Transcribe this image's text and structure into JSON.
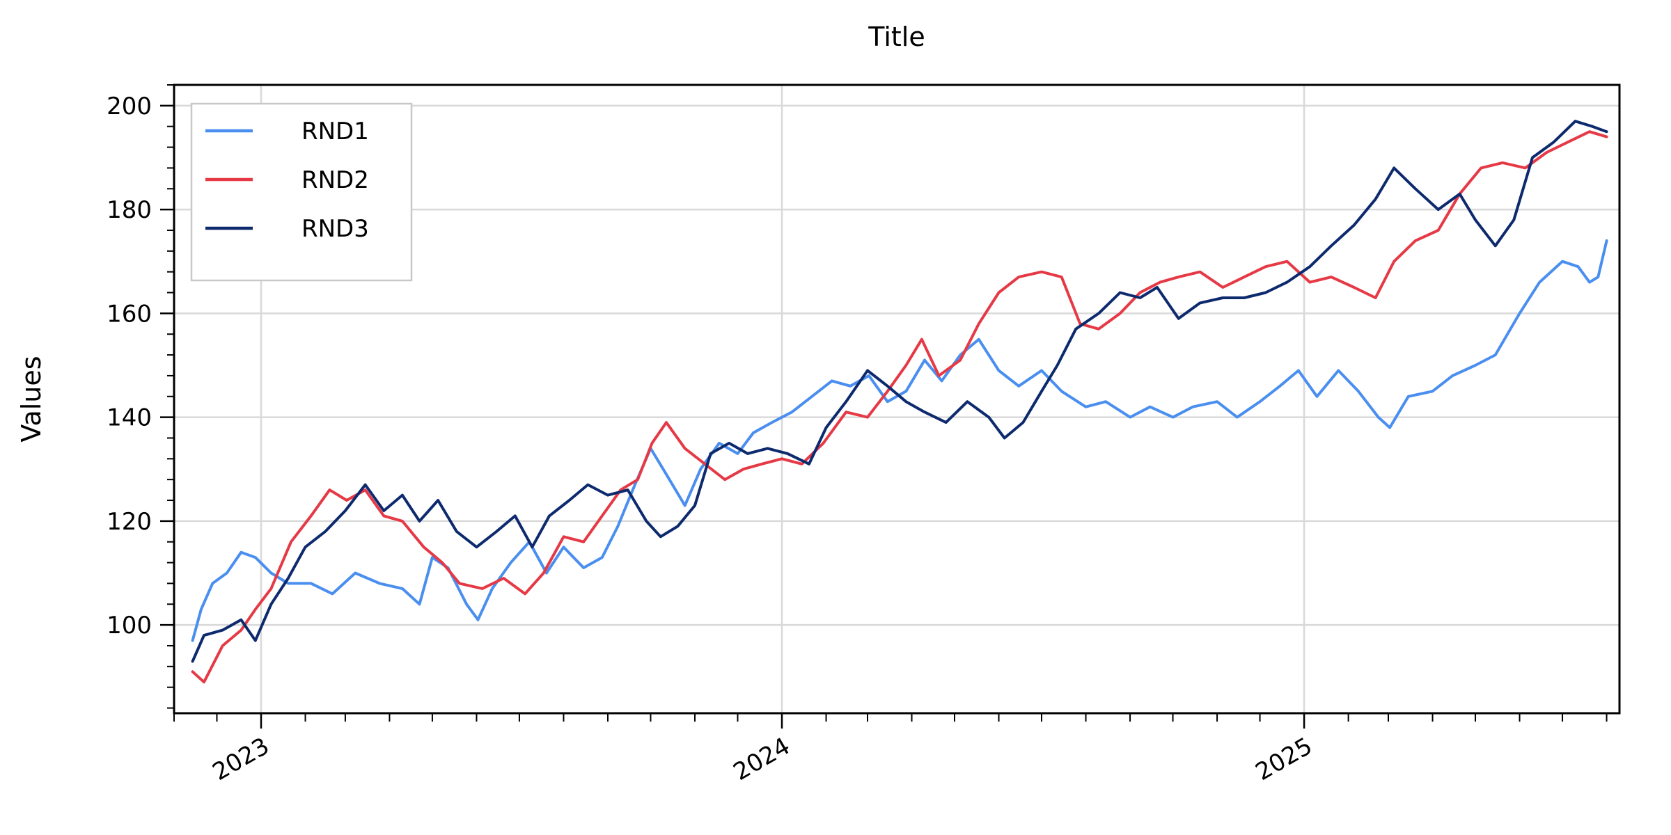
{
  "chart_data": {
    "type": "line",
    "title": "Title",
    "xlabel": "",
    "ylabel": "Values",
    "x_range": [
      "2022-11-01",
      "2025-08-10"
    ],
    "ylim": [
      83,
      204
    ],
    "y_ticks": [
      100,
      120,
      140,
      160,
      180,
      200
    ],
    "x_ticks": [
      {
        "date": "2023-01-01",
        "label": "2023"
      },
      {
        "date": "2024-01-01",
        "label": "2024"
      },
      {
        "date": "2025-01-01",
        "label": "2025"
      }
    ],
    "grid": true,
    "legend_position": "top-left",
    "series": [
      {
        "name": "RND1",
        "color": "#4a8fef",
        "points": [
          [
            "2022-11-14",
            97
          ],
          [
            "2022-11-20",
            103
          ],
          [
            "2022-11-28",
            108
          ],
          [
            "2022-12-08",
            110
          ],
          [
            "2022-12-18",
            114
          ],
          [
            "2022-12-28",
            113
          ],
          [
            "2023-01-08",
            110
          ],
          [
            "2023-01-20",
            108
          ],
          [
            "2023-02-05",
            108
          ],
          [
            "2023-02-20",
            106
          ],
          [
            "2023-03-08",
            110
          ],
          [
            "2023-03-25",
            108
          ],
          [
            "2023-04-10",
            107
          ],
          [
            "2023-04-22",
            104
          ],
          [
            "2023-05-01",
            113
          ],
          [
            "2023-05-12",
            111
          ],
          [
            "2023-05-25",
            104
          ],
          [
            "2023-06-02",
            101
          ],
          [
            "2023-06-12",
            107
          ],
          [
            "2023-06-25",
            112
          ],
          [
            "2023-07-08",
            116
          ],
          [
            "2023-07-20",
            110
          ],
          [
            "2023-08-01",
            115
          ],
          [
            "2023-08-15",
            111
          ],
          [
            "2023-08-28",
            113
          ],
          [
            "2023-09-08",
            119
          ],
          [
            "2023-09-20",
            127
          ],
          [
            "2023-10-01",
            134
          ],
          [
            "2023-10-12",
            129
          ],
          [
            "2023-10-25",
            123
          ],
          [
            "2023-11-05",
            130
          ],
          [
            "2023-11-18",
            135
          ],
          [
            "2023-12-01",
            133
          ],
          [
            "2023-12-12",
            137
          ],
          [
            "2023-12-25",
            139
          ],
          [
            "2024-01-08",
            141
          ],
          [
            "2024-01-22",
            144
          ],
          [
            "2024-02-05",
            147
          ],
          [
            "2024-02-18",
            146
          ],
          [
            "2024-03-02",
            148
          ],
          [
            "2024-03-15",
            143
          ],
          [
            "2024-03-28",
            145
          ],
          [
            "2024-04-10",
            151
          ],
          [
            "2024-04-22",
            147
          ],
          [
            "2024-05-05",
            152
          ],
          [
            "2024-05-18",
            155
          ],
          [
            "2024-06-01",
            149
          ],
          [
            "2024-06-15",
            146
          ],
          [
            "2024-07-01",
            149
          ],
          [
            "2024-07-15",
            145
          ],
          [
            "2024-08-01",
            142
          ],
          [
            "2024-08-15",
            143
          ],
          [
            "2024-09-01",
            140
          ],
          [
            "2024-09-15",
            142
          ],
          [
            "2024-10-01",
            140
          ],
          [
            "2024-10-15",
            142
          ],
          [
            "2024-11-01",
            143
          ],
          [
            "2024-11-15",
            140
          ],
          [
            "2024-12-01",
            143
          ],
          [
            "2024-12-15",
            146
          ],
          [
            "2024-12-28",
            149
          ],
          [
            "2025-01-10",
            144
          ],
          [
            "2025-01-25",
            149
          ],
          [
            "2025-02-08",
            145
          ],
          [
            "2025-02-22",
            140
          ],
          [
            "2025-03-02",
            138
          ],
          [
            "2025-03-15",
            144
          ],
          [
            "2025-04-01",
            145
          ],
          [
            "2025-04-15",
            148
          ],
          [
            "2025-05-01",
            150
          ],
          [
            "2025-05-15",
            152
          ],
          [
            "2025-06-01",
            160
          ],
          [
            "2025-06-15",
            166
          ],
          [
            "2025-07-01",
            170
          ],
          [
            "2025-07-12",
            169
          ],
          [
            "2025-07-20",
            166
          ],
          [
            "2025-07-26",
            167
          ],
          [
            "2025-08-01",
            174
          ]
        ]
      },
      {
        "name": "RND2",
        "color": "#e63946",
        "points": [
          [
            "2022-11-14",
            91
          ],
          [
            "2022-11-22",
            89
          ],
          [
            "2022-12-05",
            96
          ],
          [
            "2022-12-18",
            99
          ],
          [
            "2022-12-28",
            103
          ],
          [
            "2023-01-08",
            107
          ],
          [
            "2023-01-22",
            116
          ],
          [
            "2023-02-05",
            121
          ],
          [
            "2023-02-18",
            126
          ],
          [
            "2023-03-02",
            124
          ],
          [
            "2023-03-15",
            126
          ],
          [
            "2023-03-28",
            121
          ],
          [
            "2023-04-10",
            120
          ],
          [
            "2023-04-25",
            115
          ],
          [
            "2023-05-08",
            112
          ],
          [
            "2023-05-20",
            108
          ],
          [
            "2023-06-05",
            107
          ],
          [
            "2023-06-20",
            109
          ],
          [
            "2023-07-05",
            106
          ],
          [
            "2023-07-18",
            110
          ],
          [
            "2023-08-01",
            117
          ],
          [
            "2023-08-15",
            116
          ],
          [
            "2023-08-28",
            121
          ],
          [
            "2023-09-10",
            126
          ],
          [
            "2023-09-22",
            128
          ],
          [
            "2023-10-02",
            135
          ],
          [
            "2023-10-12",
            139
          ],
          [
            "2023-10-25",
            134
          ],
          [
            "2023-11-08",
            131
          ],
          [
            "2023-11-22",
            128
          ],
          [
            "2023-12-05",
            130
          ],
          [
            "2023-12-18",
            131
          ],
          [
            "2024-01-01",
            132
          ],
          [
            "2024-01-15",
            131
          ],
          [
            "2024-01-30",
            135
          ],
          [
            "2024-02-15",
            141
          ],
          [
            "2024-03-01",
            140
          ],
          [
            "2024-03-15",
            145
          ],
          [
            "2024-03-28",
            150
          ],
          [
            "2024-04-08",
            155
          ],
          [
            "2024-04-20",
            148
          ],
          [
            "2024-05-05",
            151
          ],
          [
            "2024-05-18",
            158
          ],
          [
            "2024-06-01",
            164
          ],
          [
            "2024-06-15",
            167
          ],
          [
            "2024-07-01",
            168
          ],
          [
            "2024-07-15",
            167
          ],
          [
            "2024-07-28",
            158
          ],
          [
            "2024-08-10",
            157
          ],
          [
            "2024-08-25",
            160
          ],
          [
            "2024-09-08",
            164
          ],
          [
            "2024-09-22",
            166
          ],
          [
            "2024-10-05",
            167
          ],
          [
            "2024-10-20",
            168
          ],
          [
            "2024-11-05",
            165
          ],
          [
            "2024-11-20",
            167
          ],
          [
            "2024-12-05",
            169
          ],
          [
            "2024-12-20",
            170
          ],
          [
            "2025-01-05",
            166
          ],
          [
            "2025-01-20",
            167
          ],
          [
            "2025-02-05",
            165
          ],
          [
            "2025-02-20",
            163
          ],
          [
            "2025-03-05",
            170
          ],
          [
            "2025-03-20",
            174
          ],
          [
            "2025-04-05",
            176
          ],
          [
            "2025-04-20",
            183
          ],
          [
            "2025-05-05",
            188
          ],
          [
            "2025-05-20",
            189
          ],
          [
            "2025-06-05",
            188
          ],
          [
            "2025-06-20",
            191
          ],
          [
            "2025-07-05",
            193
          ],
          [
            "2025-07-20",
            195
          ],
          [
            "2025-08-01",
            194
          ]
        ]
      },
      {
        "name": "RND3",
        "color": "#0d2a6e",
        "points": [
          [
            "2022-11-14",
            93
          ],
          [
            "2022-11-22",
            98
          ],
          [
            "2022-12-05",
            99
          ],
          [
            "2022-12-18",
            101
          ],
          [
            "2022-12-28",
            97
          ],
          [
            "2023-01-08",
            104
          ],
          [
            "2023-01-20",
            109
          ],
          [
            "2023-02-01",
            115
          ],
          [
            "2023-02-15",
            118
          ],
          [
            "2023-03-01",
            122
          ],
          [
            "2023-03-15",
            127
          ],
          [
            "2023-03-28",
            122
          ],
          [
            "2023-04-10",
            125
          ],
          [
            "2023-04-22",
            120
          ],
          [
            "2023-05-05",
            124
          ],
          [
            "2023-05-18",
            118
          ],
          [
            "2023-06-01",
            115
          ],
          [
            "2023-06-15",
            118
          ],
          [
            "2023-06-28",
            121
          ],
          [
            "2023-07-10",
            115
          ],
          [
            "2023-07-22",
            121
          ],
          [
            "2023-08-05",
            124
          ],
          [
            "2023-08-18",
            127
          ],
          [
            "2023-09-01",
            125
          ],
          [
            "2023-09-15",
            126
          ],
          [
            "2023-09-28",
            120
          ],
          [
            "2023-10-08",
            117
          ],
          [
            "2023-10-20",
            119
          ],
          [
            "2023-11-01",
            123
          ],
          [
            "2023-11-12",
            133
          ],
          [
            "2023-11-25",
            135
          ],
          [
            "2023-12-08",
            133
          ],
          [
            "2023-12-22",
            134
          ],
          [
            "2024-01-05",
            133
          ],
          [
            "2024-01-20",
            131
          ],
          [
            "2024-02-01",
            138
          ],
          [
            "2024-02-15",
            143
          ],
          [
            "2024-03-01",
            149
          ],
          [
            "2024-03-15",
            146
          ],
          [
            "2024-03-28",
            143
          ],
          [
            "2024-04-10",
            141
          ],
          [
            "2024-04-25",
            139
          ],
          [
            "2024-05-10",
            143
          ],
          [
            "2024-05-25",
            140
          ],
          [
            "2024-06-05",
            136
          ],
          [
            "2024-06-18",
            139
          ],
          [
            "2024-07-01",
            145
          ],
          [
            "2024-07-12",
            150
          ],
          [
            "2024-07-25",
            157
          ],
          [
            "2024-08-10",
            160
          ],
          [
            "2024-08-25",
            164
          ],
          [
            "2024-09-08",
            163
          ],
          [
            "2024-09-20",
            165
          ],
          [
            "2024-10-05",
            159
          ],
          [
            "2024-10-20",
            162
          ],
          [
            "2024-11-05",
            163
          ],
          [
            "2024-11-20",
            163
          ],
          [
            "2024-12-05",
            164
          ],
          [
            "2024-12-20",
            166
          ],
          [
            "2025-01-05",
            169
          ],
          [
            "2025-01-20",
            173
          ],
          [
            "2025-02-05",
            177
          ],
          [
            "2025-02-20",
            182
          ],
          [
            "2025-03-05",
            188
          ],
          [
            "2025-03-20",
            184
          ],
          [
            "2025-04-05",
            180
          ],
          [
            "2025-04-20",
            183
          ],
          [
            "2025-05-01",
            178
          ],
          [
            "2025-05-15",
            173
          ],
          [
            "2025-05-28",
            178
          ],
          [
            "2025-06-10",
            190
          ],
          [
            "2025-06-25",
            193
          ],
          [
            "2025-07-10",
            197
          ],
          [
            "2025-07-22",
            196
          ],
          [
            "2025-08-01",
            195
          ]
        ]
      }
    ]
  }
}
